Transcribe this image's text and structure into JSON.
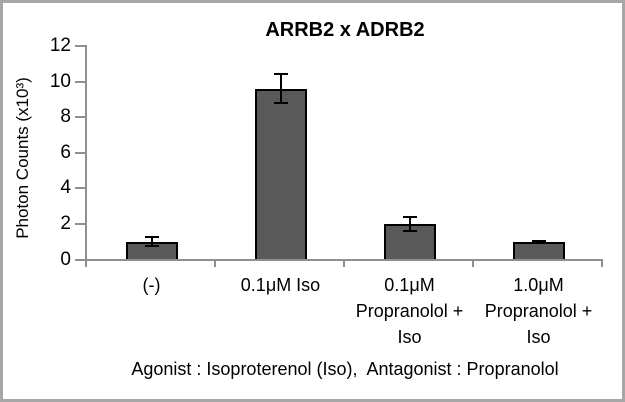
{
  "figure": {
    "border_color": "#a6a6a6",
    "background": "#ffffff"
  },
  "chart_data": {
    "type": "bar",
    "title": "ARRB2 x ADRB2",
    "ylabel": "Photon Counts (x10³)",
    "caption": "Agonist : Isoproterenol (Iso),  Antagonist : Propranolol",
    "categories": [
      "(-)",
      "0.1μM Iso",
      "0.1μM\nPropranolol +\nIso",
      "1.0μM\nPropranolol +\nIso"
    ],
    "values": [
      1.0,
      9.6,
      2.0,
      1.0
    ],
    "errors": [
      0.25,
      0.8,
      0.4,
      0.05
    ],
    "ylim": [
      0,
      12
    ],
    "yticks": [
      0,
      2,
      4,
      6,
      8,
      10,
      12
    ],
    "grid": false,
    "legend": false,
    "colors": {
      "bar_fill": "#595959",
      "bar_border": "#000000",
      "error_bar": "#000000",
      "axis_line": "#8f8f8f",
      "text": "#000000"
    }
  }
}
